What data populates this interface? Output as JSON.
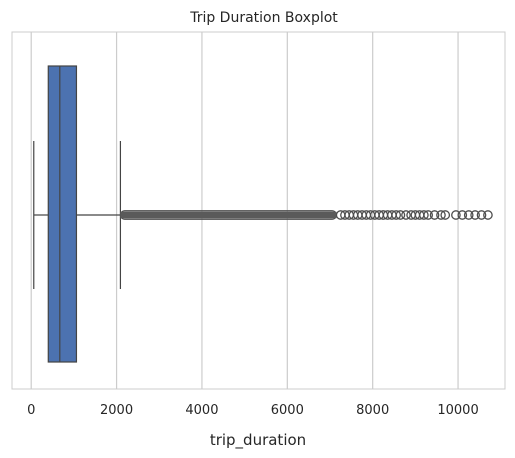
{
  "chart_data": {
    "type": "boxplot",
    "title": "Trip Duration Boxplot",
    "xlabel": "trip_duration",
    "ylabel": "",
    "xlim": [
      -450,
      11100
    ],
    "xticks": [
      0,
      2000,
      4000,
      6000,
      8000,
      10000
    ],
    "xtick_labels": [
      "0",
      "2000",
      "4000",
      "6000",
      "8000",
      "10000"
    ],
    "grid": "vertical",
    "orientation": "horizontal",
    "box": {
      "whisker_low": 60,
      "q1": 400,
      "median": 670,
      "q3": 1060,
      "whisker_high": 2090,
      "fill_color": "#4c72b0",
      "line_color": "#444444"
    },
    "outliers": {
      "dense_range": [
        2090,
        7150
      ],
      "points": [
        7250,
        7350,
        7450,
        7550,
        7650,
        7750,
        7850,
        7950,
        8050,
        8150,
        8250,
        8350,
        8450,
        8550,
        8650,
        8780,
        8900,
        9000,
        9100,
        9200,
        9300,
        9450,
        9600,
        9700,
        9950,
        10100,
        10250,
        10400,
        10550,
        10700
      ]
    }
  }
}
